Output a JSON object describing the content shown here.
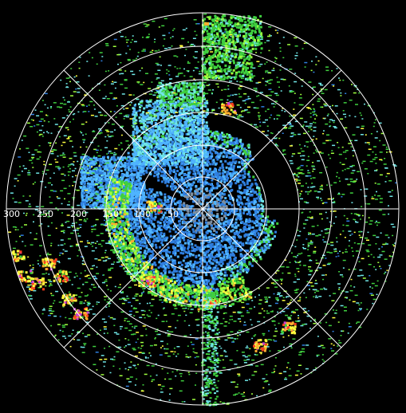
{
  "range_labels": [
    "50",
    "100",
    "150",
    "200",
    "250",
    "300"
  ],
  "colors": {
    "background": "#000000",
    "grid": "#ffffff",
    "echo_weak_blue": "#2f7fe0",
    "echo_light_blue": "#4fb4ff",
    "echo_cyan": "#6fe6e6",
    "echo_green": "#3fcf3f",
    "echo_bright_green": "#9fff3f",
    "echo_yellow": "#ffff3f",
    "echo_orange": "#ffaf2f",
    "echo_red": "#ff3f1f",
    "echo_magenta": "#cf3fcf",
    "clutter_grey": "#7f8f9f"
  }
}
